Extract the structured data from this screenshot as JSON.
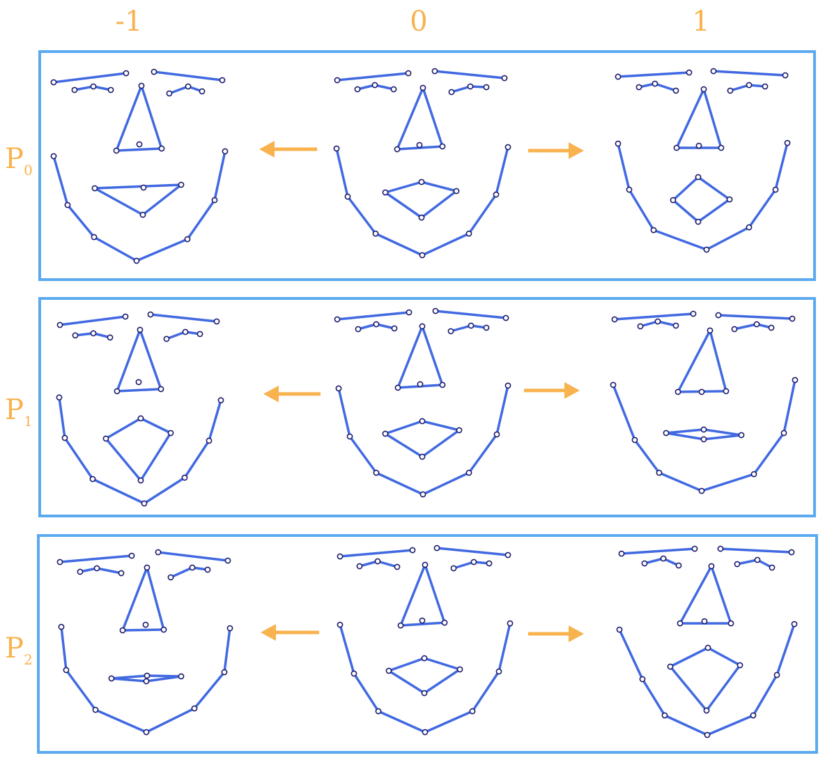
{
  "columns": [
    "-1",
    "0",
    "1"
  ],
  "rows": [
    {
      "letter": "P",
      "index": "0"
    },
    {
      "letter": "P",
      "index": "1"
    },
    {
      "letter": "P",
      "index": "2"
    }
  ],
  "colors": {
    "label": "#f8b24e",
    "panel_border": "#5baaf0",
    "face_line": "#4169e1",
    "landmark_point": "#1a1a6e",
    "arrow": "#f8b24e"
  },
  "landmark_style": "open-circle",
  "arrow_icons": [
    "left-arrow-icon",
    "right-arrow-icon"
  ]
}
